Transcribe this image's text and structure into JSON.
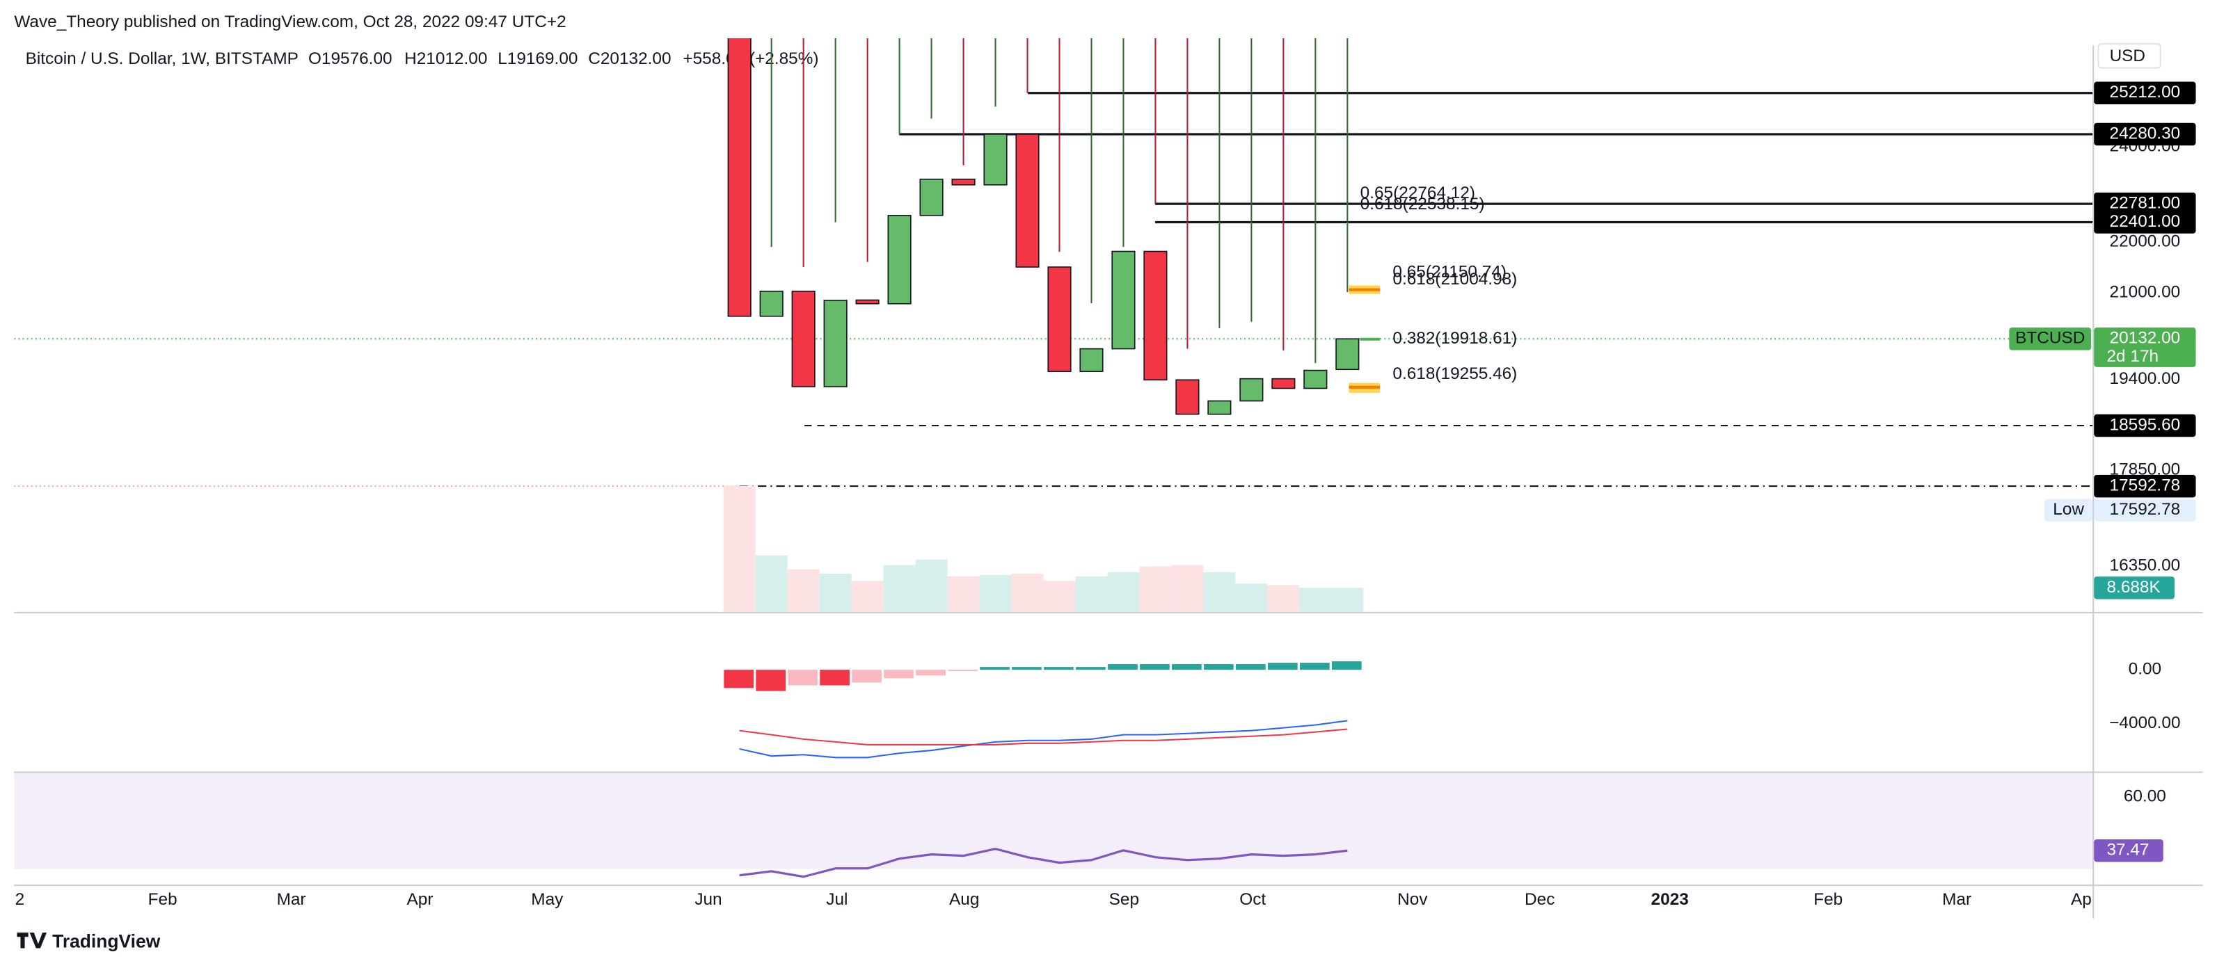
{
  "header": {
    "publisher": "Wave_Theory published on TradingView.com, Oct 28, 2022 09:47 UTC+2",
    "symbol": "Bitcoin / U.S. Dollar, 1W, BITSTAMP",
    "ohlc": [
      "O19576.00",
      "H21012.00",
      "L19169.00",
      "C20132.00",
      "+558.00 (+2.85%)"
    ]
  },
  "currency": "USD",
  "time_axis": [
    "2",
    "Feb",
    "Mar",
    "Apr",
    "May",
    "Jun",
    "Jul",
    "Aug",
    "Sep",
    "Oct",
    "Nov",
    "Dec",
    "2023",
    "Feb",
    "Mar",
    "Ap"
  ],
  "footer": "TradingView",
  "chart_data": [
    {
      "type": "candlestick",
      "log_scale": true,
      "up_color": "#66bb6a",
      "down_color": "#f23645",
      "categories": [
        null,
        null,
        null,
        null,
        null,
        null,
        null,
        null,
        null,
        null,
        null,
        null,
        null,
        null,
        null,
        null,
        null,
        null,
        null,
        null
      ],
      "open": [
        26574,
        20553,
        21028,
        19270,
        20860,
        20790,
        22540,
        23300,
        23180,
        24280,
        21500,
        19540,
        19950,
        21810,
        19390,
        18790,
        19020,
        19410,
        19240,
        19576
      ],
      "high": [
        26900,
        21900,
        21500,
        22400,
        21600,
        24280.3,
        24630,
        23600,
        24900,
        25212,
        21800,
        20800,
        21900,
        22781,
        19950,
        20330,
        20450,
        19920,
        19690,
        21012
      ],
      "low": {
        "name": "Low",
        "value": 17592.78,
        "label": "17592.78"
      },
      "close": [
        20553,
        21028,
        19270,
        20855,
        20790,
        22540,
        23300,
        23180,
        24280,
        21500,
        19540,
        19950,
        21810,
        19390,
        18790,
        19020,
        19410,
        19240,
        19560,
        20132
      ],
      "ylim": [
        15680,
        26510
      ],
      "yticks": [
        {
          "value": 16350,
          "label": "16350.00"
        },
        {
          "value": 17850,
          "label": "17850.00"
        },
        {
          "value": 19400,
          "label": "19400.00"
        },
        {
          "value": 21000,
          "label": "21000.00"
        },
        {
          "value": 22000,
          "label": "22000.00"
        },
        {
          "value": 24000,
          "label": "24000.00"
        }
      ],
      "levels": [
        {
          "value": 25212,
          "label": "25212.00",
          "style": "solid"
        },
        {
          "value": 24280.3,
          "label": "24280.30",
          "style": "solid"
        },
        {
          "value": 22781,
          "label": "22781.00",
          "style": "solid"
        },
        {
          "value": 22401,
          "label": "22401.00",
          "style": "solid"
        },
        {
          "value": 18595.6,
          "label": "18595.60",
          "style": "dashed"
        },
        {
          "value": 17592.78,
          "label": "17592.78",
          "style": "dashdot"
        }
      ],
      "current": {
        "name": "BTCUSD",
        "value": 20132,
        "label": "20132.00",
        "countdown": "2d 17h",
        "color": "#4caf50"
      },
      "annotations": [
        {
          "text": "0.65(22764.12)",
          "color": "#ffd966"
        },
        {
          "text": "0.618(22538.15)",
          "color": "#f7a600"
        },
        {
          "text": "0.65(21150.74)",
          "color": "#ffe599"
        },
        {
          "text": "0.618(21004.98)",
          "color": "#f7a600"
        },
        {
          "text": "0.382(19918.61)",
          "color": "#4caf50"
        },
        {
          "text": "0.618(19255.46)",
          "color": "#f7a600"
        }
      ]
    },
    {
      "type": "bar",
      "up_color": "#d6efec",
      "down_color": "#fde2e4",
      "last_color": "#26a69a",
      "values": [
        45.5,
        20.4,
        15.3,
        13.8,
        11.2,
        16.9,
        18.9,
        12.8,
        13.3,
        13.8,
        11.2,
        12.8,
        14.3,
        16.4,
        16.9,
        14.3,
        10.2,
        9.7,
        8.7,
        8.688
      ],
      "ylim": [
        0,
        52
      ],
      "last_label": "8.688K"
    },
    {
      "type": "macd",
      "macd_color": "#2962ff",
      "signal_color": "#f23645",
      "pos_color": "#26a69a",
      "neg_color": "#f23645",
      "macd": [
        -5890,
        -6420,
        -6320,
        -6530,
        -6530,
        -6210,
        -6000,
        -5680,
        -5370,
        -5260,
        -5260,
        -5160,
        -4840,
        -4840,
        -4740,
        -4630,
        -4530,
        -4320,
        -4110,
        -3790
      ],
      "signal": [
        -4530,
        -4840,
        -5160,
        -5370,
        -5580,
        -5580,
        -5580,
        -5580,
        -5580,
        -5470,
        -5470,
        -5370,
        -5260,
        -5260,
        -5160,
        -5050,
        -4950,
        -4840,
        -4630,
        -4420
      ],
      "histogram": [
        -1360,
        -1580,
        -1160,
        -1160,
        -950,
        -630,
        -420,
        -100,
        210,
        210,
        210,
        210,
        420,
        420,
        420,
        420,
        420,
        520,
        520,
        630
      ],
      "ylim": [
        -7470,
        4100
      ],
      "yticks": [
        {
          "value": 0,
          "label": "0.00"
        },
        {
          "value": -4000,
          "label": "−4000.00"
        }
      ]
    },
    {
      "type": "line",
      "color": "#7e57c2",
      "values": [
        27.1,
        28.8,
        26.5,
        30.0,
        30.0,
        34.1,
        35.9,
        35.3,
        38.2,
        34.7,
        32.4,
        33.5,
        37.6,
        34.7,
        33.5,
        34.1,
        35.9,
        35.3,
        35.9,
        37.47
      ],
      "ylim": [
        23.8,
        70.1
      ],
      "yticks": [
        {
          "value": 60,
          "label": "60.00"
        }
      ],
      "last_label": "37.47"
    }
  ]
}
